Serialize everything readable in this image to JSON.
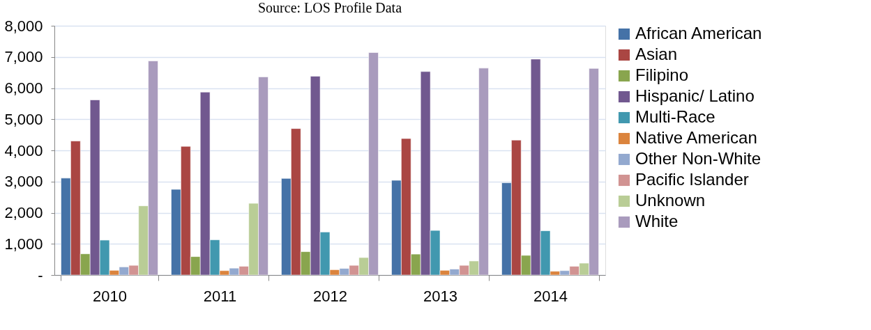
{
  "chart_data": {
    "type": "bar",
    "title": "Source: LOS Profile Data",
    "categories": [
      "2010",
      "2011",
      "2012",
      "2013",
      "2014"
    ],
    "series": [
      {
        "name": "African American",
        "color": "#4572a7",
        "values": [
          3110,
          2750,
          3100,
          3040,
          2960
        ]
      },
      {
        "name": "Asian",
        "color": "#aa4643",
        "values": [
          4300,
          4130,
          4700,
          4380,
          4330
        ]
      },
      {
        "name": "Filipino",
        "color": "#89a54e",
        "values": [
          680,
          590,
          750,
          670,
          630
        ]
      },
      {
        "name": "Hispanic/ Latino",
        "color": "#71588f",
        "values": [
          5620,
          5870,
          6380,
          6530,
          6930
        ]
      },
      {
        "name": "Multi-Race",
        "color": "#4198af",
        "values": [
          1120,
          1130,
          1380,
          1430,
          1420
        ]
      },
      {
        "name": "Native American",
        "color": "#db843d",
        "values": [
          150,
          140,
          170,
          150,
          120
        ]
      },
      {
        "name": "Other Non-White",
        "color": "#93a9cf",
        "values": [
          260,
          220,
          210,
          190,
          140
        ]
      },
      {
        "name": "Pacific Islander",
        "color": "#d19392",
        "values": [
          310,
          280,
          310,
          310,
          280
        ]
      },
      {
        "name": "Unknown",
        "color": "#b9cd96",
        "values": [
          2220,
          2300,
          560,
          450,
          380
        ]
      },
      {
        "name": "White",
        "color": "#a99bbd",
        "values": [
          6870,
          6360,
          7140,
          6640,
          6630
        ]
      }
    ],
    "ylim": [
      0,
      8000
    ],
    "yticks": [
      {
        "value": 0,
        "label": "-"
      },
      {
        "value": 1000,
        "label": "1,000"
      },
      {
        "value": 2000,
        "label": "2,000"
      },
      {
        "value": 3000,
        "label": "3,000"
      },
      {
        "value": 4000,
        "label": "4,000"
      },
      {
        "value": 5000,
        "label": "5,000"
      },
      {
        "value": 6000,
        "label": "6,000"
      },
      {
        "value": 7000,
        "label": "7,000"
      },
      {
        "value": 8000,
        "label": "8,000"
      }
    ],
    "grid": "y",
    "legend": "right"
  }
}
